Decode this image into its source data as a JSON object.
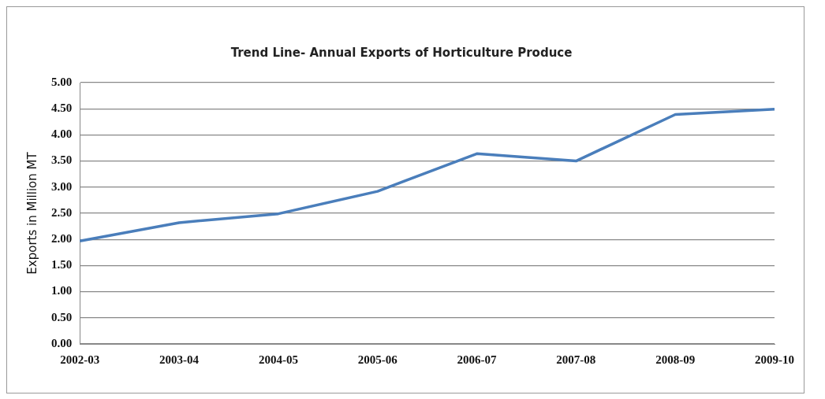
{
  "chart_data": {
    "type": "line",
    "title": "Trend Line- Annual Exports of Horticulture Produce",
    "ylabel": "Exports in Million MT",
    "categories": [
      "2002-03",
      "2003-04",
      "2004-05",
      "2005-06",
      "2006-07",
      "2007-08",
      "2008-09",
      "2009-10"
    ],
    "series": [
      {
        "color": "#4a7ebb",
        "values": [
          1.97,
          2.32,
          2.49,
          2.92,
          3.64,
          3.5,
          4.39,
          4.49
        ]
      }
    ],
    "ylim": [
      0,
      5
    ],
    "yticks": [
      {
        "value": 0,
        "label": "0.00"
      },
      {
        "value": 0.5,
        "label": "0.50"
      },
      {
        "value": 1,
        "label": "1.00"
      },
      {
        "value": 1.5,
        "label": "1.50"
      },
      {
        "value": 2,
        "label": "2.00"
      },
      {
        "value": 2.5,
        "label": "2.50"
      },
      {
        "value": 3,
        "label": "3.00"
      },
      {
        "value": 3.5,
        "label": "3.50"
      },
      {
        "value": 4,
        "label": "4.00"
      },
      {
        "value": 4.5,
        "label": "4.50"
      },
      {
        "value": 5,
        "label": "5.00"
      }
    ],
    "grid": "y",
    "legend": false,
    "marker": "none",
    "line_style": "solid"
  }
}
